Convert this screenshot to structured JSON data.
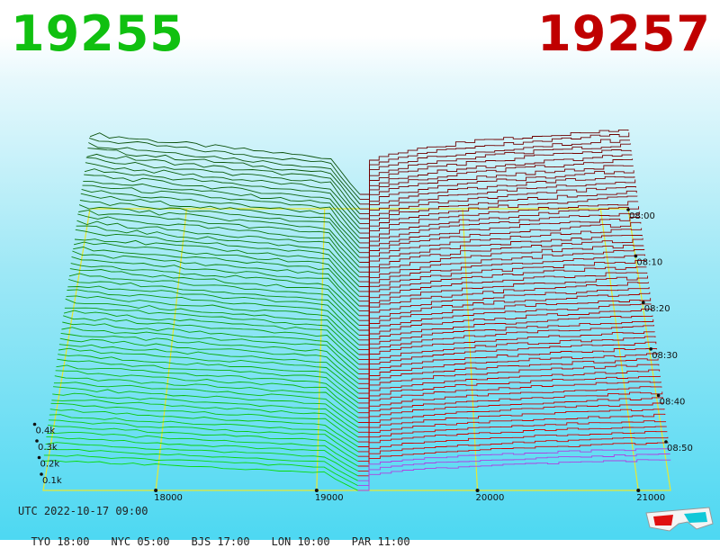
{
  "header": {
    "bid_price": "19255",
    "ask_price": "19257",
    "bid_color": "#10c010",
    "ask_color": "#c00000"
  },
  "footer": {
    "utc_label": "UTC 2022-10-17 09:00",
    "timezones": [
      {
        "label": "TYO 18:00"
      },
      {
        "label": "NYC 05:00"
      },
      {
        "label": "BJS 17:00"
      },
      {
        "label": "LON 10:00"
      },
      {
        "label": "PAR 11:00"
      }
    ]
  },
  "icons": {
    "glasses": "3d-glasses-icon"
  },
  "chart_data": {
    "type": "area",
    "title": "",
    "x_ticks": [
      18000,
      19000,
      20000,
      21000
    ],
    "x_tick_labels": [
      "18000",
      "19000",
      "20000",
      "21000"
    ],
    "volume_ticks": [
      "0.1k",
      "0.2k",
      "0.3k",
      "0.4k"
    ],
    "time_ticks": [
      "08:00",
      "08:10",
      "08:20",
      "08:30",
      "08:40",
      "08:50"
    ],
    "xlim": [
      17300,
      21200
    ],
    "mid_price": 19256,
    "series": [
      {
        "name": "19255",
        "side": "bid",
        "color": "#10c010"
      },
      {
        "name": "19257",
        "side": "ask",
        "color": "#c00000"
      }
    ],
    "grid": true
  }
}
